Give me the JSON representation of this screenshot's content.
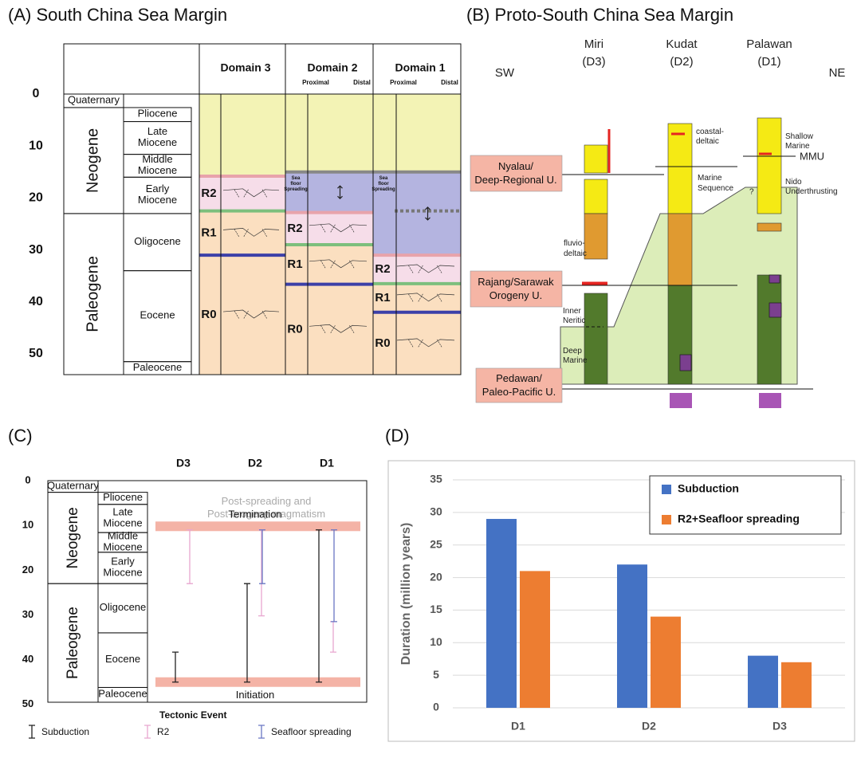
{
  "panel_a": {
    "title": "(A) South China Sea Margin",
    "age_range": [
      0,
      54
    ],
    "age_ticks": [
      0,
      10,
      20,
      30,
      40,
      50
    ],
    "eras": [
      {
        "name": "Neogene",
        "range": [
          2.6,
          23
        ]
      },
      {
        "name": "Paleogene",
        "range": [
          23,
          54
        ]
      }
    ],
    "epochs": [
      {
        "name": [
          "Quaternary"
        ],
        "range": [
          0,
          2.6
        ]
      },
      {
        "name": [
          "Pliocene"
        ],
        "range": [
          2.6,
          5.3
        ]
      },
      {
        "name": [
          "Late",
          "Miocene"
        ],
        "range": [
          5.3,
          11.6
        ]
      },
      {
        "name": [
          "Middle",
          "Miocene"
        ],
        "range": [
          11.6,
          16
        ]
      },
      {
        "name": [
          "Early",
          "Miocene"
        ],
        "range": [
          16,
          23
        ]
      },
      {
        "name": [
          "Oligocene"
        ],
        "range": [
          23,
          34
        ]
      },
      {
        "name": [
          "Eocene"
        ],
        "range": [
          34,
          51.5
        ]
      },
      {
        "name": [
          "Paleocene"
        ],
        "range": [
          51.5,
          54
        ]
      }
    ],
    "domains": [
      {
        "name": "Domain 3",
        "layers": [
          {
            "range": [
              0,
              15.8
            ],
            "fill": "#f3f3b5"
          },
          {
            "range": [
              15.8,
              22.5
            ],
            "fill": "#f6dde9",
            "label": "R2"
          },
          {
            "range": [
              22.5,
              31
            ],
            "fill": "#fbdfc0",
            "label": "R1"
          },
          {
            "range": [
              31,
              54
            ],
            "fill": "#fbdfc0",
            "label": "R0"
          }
        ],
        "lines": [
          {
            "age": 15.8,
            "color": "#e8a3ab"
          },
          {
            "age": 22.5,
            "color": "#7dbf7d"
          },
          {
            "age": 31,
            "color": "#3c40a8"
          }
        ]
      },
      {
        "name": "Domain 2",
        "sides": [
          "Proximal",
          "Distal"
        ],
        "layers": [
          {
            "range": [
              0,
              15
            ],
            "fill": "#f3f3b5"
          },
          {
            "range": [
              15,
              22.8
            ],
            "fill": "#b4b4e0",
            "label": [
              "Sea",
              "floor",
              "Spreading"
            ]
          },
          {
            "range": [
              22.8,
              29
            ],
            "fill": "#f6dde9",
            "label": "R2"
          },
          {
            "range": [
              29,
              36.6
            ],
            "fill": "#fbdfc0",
            "label": "R1"
          },
          {
            "range": [
              36.6,
              54
            ],
            "fill": "#fbdfc0",
            "label": "R0"
          }
        ],
        "lines": [
          {
            "age": 15,
            "color": "#888888"
          },
          {
            "age": 22.8,
            "color": "#e8a3ab"
          },
          {
            "age": 29,
            "color": "#7dbf7d"
          },
          {
            "age": 36.6,
            "color": "#3c40a8"
          }
        ]
      },
      {
        "name": "Domain 1",
        "sides": [
          "Proximal",
          "Distal"
        ],
        "layers": [
          {
            "range": [
              0,
              15
            ],
            "fill": "#f3f3b5"
          },
          {
            "range": [
              15,
              31
            ],
            "fill": "#b4b4e0",
            "label": [
              "Sea",
              "floor",
              "Spreading"
            ]
          },
          {
            "range": [
              31,
              36.5
            ],
            "fill": "#f6dde9",
            "label": "R2"
          },
          {
            "range": [
              36.5,
              42
            ],
            "fill": "#fbdfc0",
            "label": "R1"
          },
          {
            "range": [
              42,
              54
            ],
            "fill": "#fbdfc0",
            "label": "R0"
          }
        ],
        "lines": [
          {
            "age": 15,
            "color": "#888888"
          },
          {
            "age": 22.5,
            "color": "#777777",
            "dashed": true
          },
          {
            "age": 31,
            "color": "#e8a3ab"
          },
          {
            "age": 36.5,
            "color": "#7dbf7d"
          },
          {
            "age": 42,
            "color": "#3c40a8"
          }
        ]
      }
    ]
  },
  "panel_b": {
    "title": "(B) Proto-South China Sea Margin",
    "directions": [
      "SW",
      "NE"
    ],
    "sections": [
      {
        "name": "Miri",
        "code": "(D3)"
      },
      {
        "name": "Kudat",
        "code": "(D2)"
      },
      {
        "name": "Palawan",
        "code": "(D1)"
      }
    ],
    "unconformities": [
      [
        "Nyalau/",
        "Deep-Regional U."
      ],
      [
        "Rajang/Sarawak",
        "Orogeny U."
      ],
      [
        "Pedawan/",
        "Paleo-Pacific U."
      ]
    ],
    "annotations": {
      "coastal_deltaic": [
        "coastal-",
        "deltaic"
      ],
      "marine_sequence": [
        "Marine",
        "Sequence"
      ],
      "shallow_marine": [
        "Shallow",
        "Marine"
      ],
      "mmu": "MMU",
      "nido": [
        "Nido",
        "Underthrusting"
      ],
      "question": "?",
      "fluvio_deltaic": [
        "fluvio-",
        "deltaic"
      ],
      "inner_neritic": [
        "Inner",
        "Neritic"
      ],
      "deep_marine": [
        "Deep",
        "Marine"
      ]
    }
  },
  "panel_c": {
    "title": "(C)",
    "age_range": [
      0,
      49.5
    ],
    "age_ticks": [
      0,
      10,
      20,
      30,
      40,
      50
    ],
    "eras": [
      {
        "name": "Neogene",
        "range": [
          2.6,
          23
        ]
      },
      {
        "name": "Paleogene",
        "range": [
          23,
          49.5
        ]
      }
    ],
    "epochs": [
      {
        "name": [
          "Quaternary"
        ],
        "range": [
          0,
          2.6
        ]
      },
      {
        "name": [
          "Pliocene"
        ],
        "range": [
          2.6,
          5.3
        ]
      },
      {
        "name": [
          "Late",
          "Miocene"
        ],
        "range": [
          5.3,
          11.6
        ]
      },
      {
        "name": [
          "Middle",
          "Miocene"
        ],
        "range": [
          11.6,
          16
        ]
      },
      {
        "name": [
          "Early",
          "Miocene"
        ],
        "range": [
          16,
          23
        ]
      },
      {
        "name": [
          "Oligocene"
        ],
        "range": [
          23,
          34
        ]
      },
      {
        "name": [
          "Eocene"
        ],
        "range": [
          34,
          46.2
        ]
      },
      {
        "name": [
          "Paleocene"
        ],
        "range": [
          46.2,
          49.5
        ]
      }
    ],
    "columns": [
      "D3",
      "D2",
      "D1"
    ],
    "note": [
      "Post-spreading and",
      "Post-orogeny magmatism"
    ],
    "termination": {
      "label": "Termination",
      "age": 10.2
    },
    "initiation": {
      "label": "Initiation",
      "age": 45
    },
    "legend_title": "Tectonic Event",
    "events": [
      {
        "name": "Subduction",
        "color": "#222222",
        "ranges": [
          [
            38.3,
            45
          ],
          [
            23,
            45
          ],
          [
            11,
            45
          ]
        ]
      },
      {
        "name": "R2",
        "color": "#e8a6cf",
        "ranges": [
          [
            11,
            23
          ],
          [
            11,
            30.2
          ],
          [
            31.5,
            38.3
          ]
        ]
      },
      {
        "name": "Seafloor spreading",
        "color": "#6a77c4",
        "ranges": [
          null,
          [
            11,
            23
          ],
          [
            11,
            31.5
          ]
        ]
      }
    ]
  },
  "chart_data": {
    "type": "bar",
    "title": "(D)",
    "categories": [
      "D1",
      "D2",
      "D3"
    ],
    "series": [
      {
        "name": "Subduction",
        "color": "#4472c4",
        "values": [
          29,
          22,
          8
        ]
      },
      {
        "name": "R2+Seafloor spreading",
        "color": "#ed7d31",
        "values": [
          21,
          14,
          7
        ]
      }
    ],
    "ylim": [
      0,
      35
    ],
    "yticks": [
      0,
      5,
      10,
      15,
      20,
      25,
      30,
      35
    ],
    "y_label": "Duration (million years)",
    "grid": true,
    "legend": "upper right"
  }
}
